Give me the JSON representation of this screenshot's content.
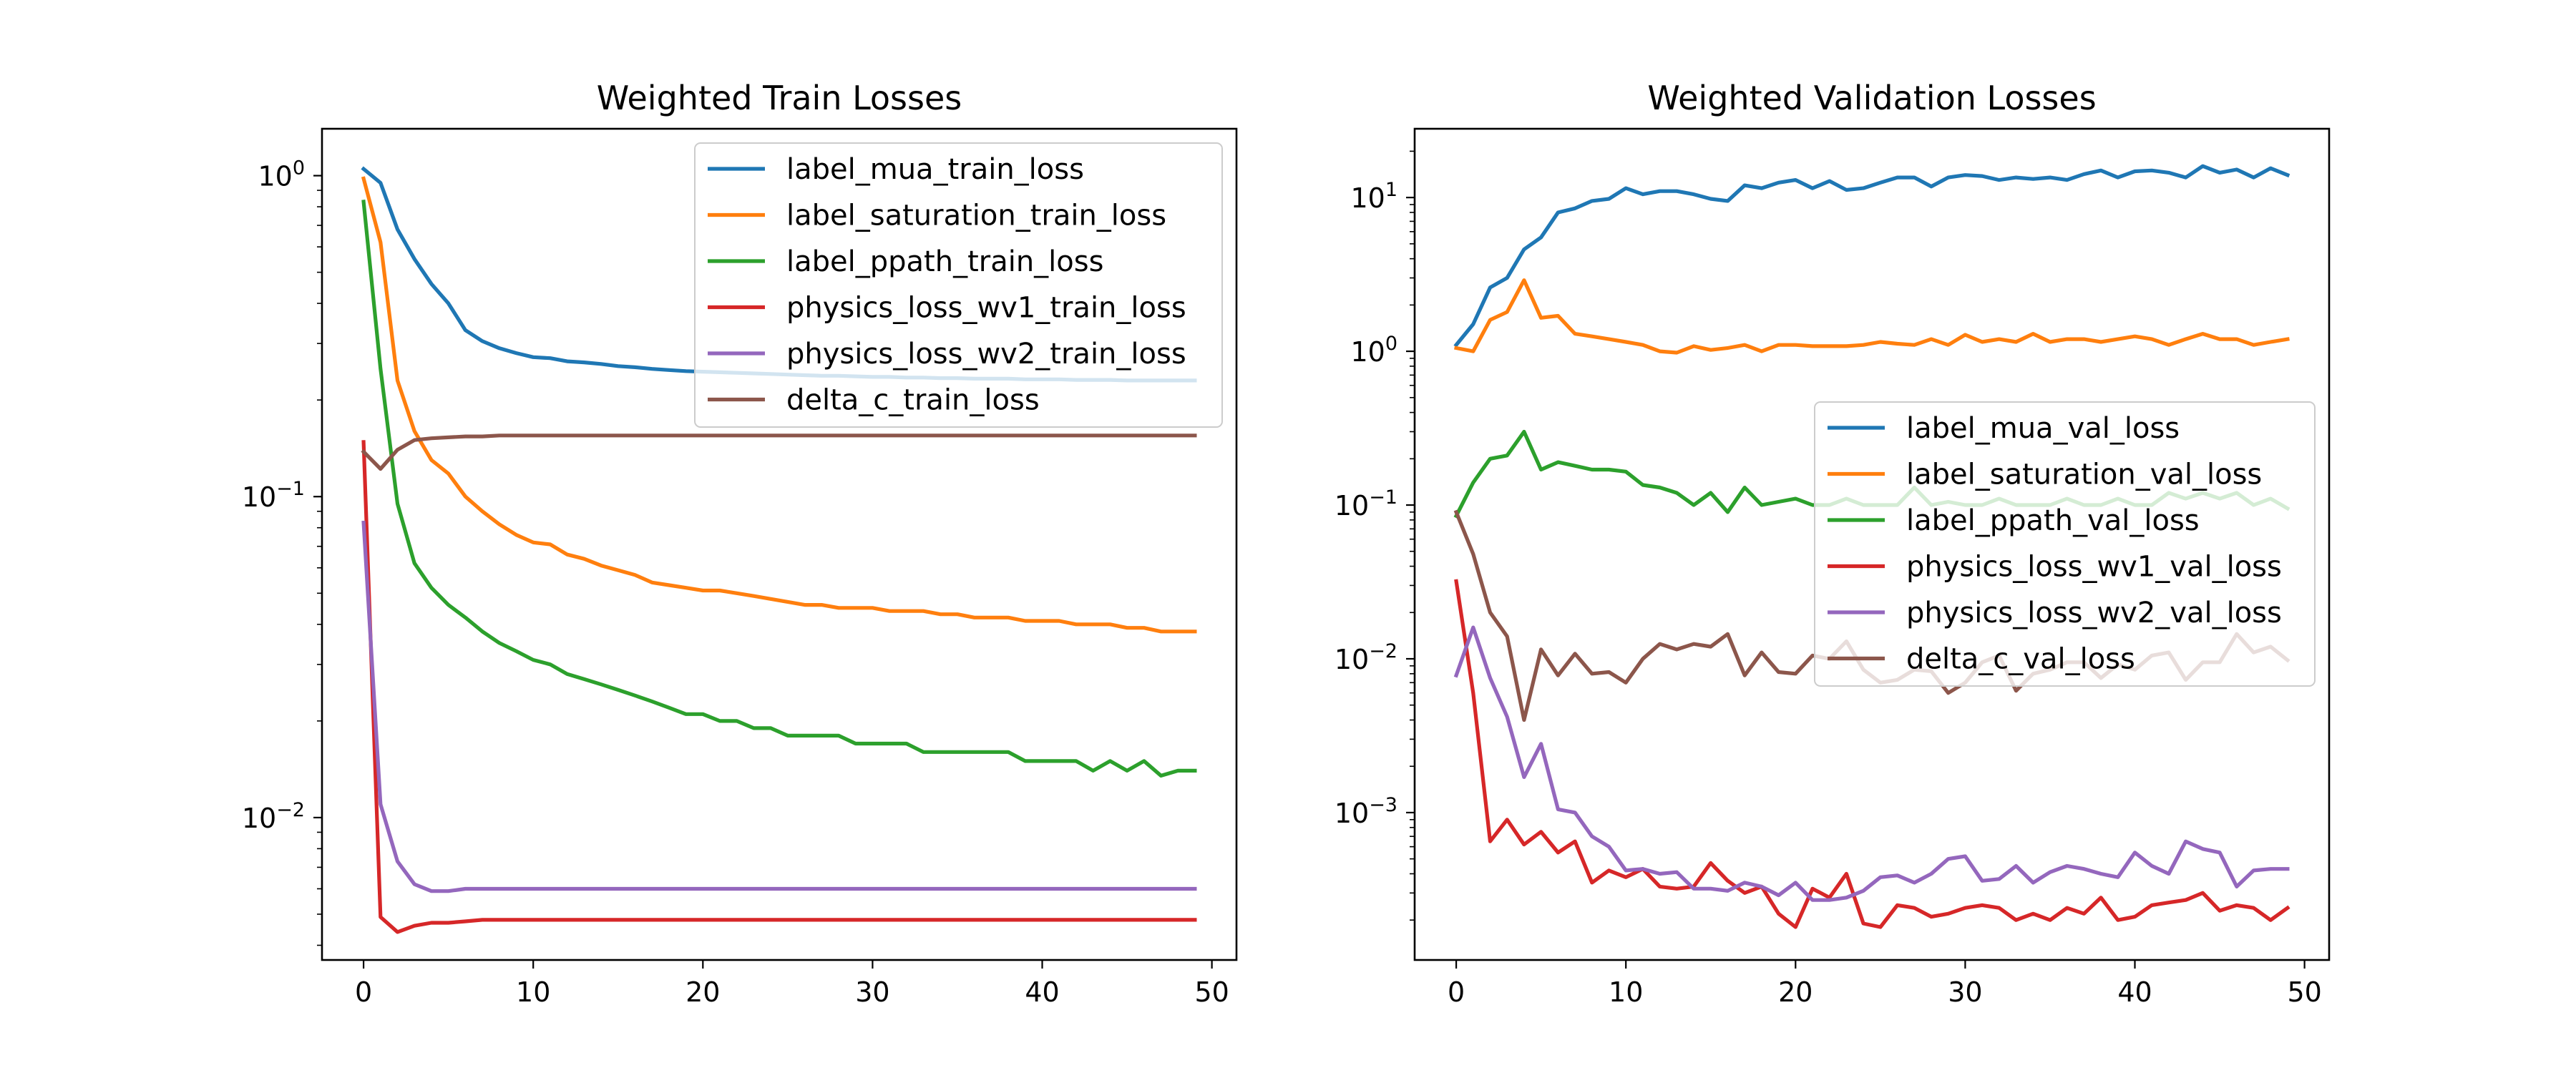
{
  "colors": {
    "blue": "#1f77b4",
    "orange": "#ff7f0e",
    "green": "#2ca02c",
    "red": "#d62728",
    "purple": "#9467bd",
    "brown": "#8c564b"
  },
  "chart_data": [
    {
      "type": "line",
      "title": "Weighted Train Losses",
      "xlabel": "",
      "ylabel": "",
      "xlim": [
        -2.45,
        51.45
      ],
      "ylim": [
        0.0036,
        1.4
      ],
      "yscale": "log",
      "xticks": [
        0,
        10,
        20,
        30,
        40,
        50
      ],
      "xtick_labels": [
        "0",
        "10",
        "20",
        "30",
        "40",
        "50"
      ],
      "yticks": [
        1,
        0.1,
        0.01
      ],
      "ytick_labels": [
        "10",
        "10",
        "10"
      ],
      "ytick_exponents": [
        "0",
        "−1",
        "−2"
      ],
      "grid": false,
      "legend": "top-right",
      "x": [
        0,
        1,
        2,
        3,
        4,
        5,
        6,
        7,
        8,
        9,
        10,
        11,
        12,
        13,
        14,
        15,
        16,
        17,
        18,
        19,
        20,
        21,
        22,
        23,
        24,
        25,
        26,
        27,
        28,
        29,
        30,
        31,
        32,
        33,
        34,
        35,
        36,
        37,
        38,
        39,
        40,
        41,
        42,
        43,
        44,
        45,
        46,
        47,
        48,
        49
      ],
      "series": [
        {
          "name": "label_mua_train_loss",
          "color": "blue",
          "values": [
            1.05,
            0.95,
            0.68,
            0.55,
            0.46,
            0.4,
            0.33,
            0.305,
            0.29,
            0.28,
            0.272,
            0.27,
            0.264,
            0.262,
            0.259,
            0.255,
            0.253,
            0.25,
            0.248,
            0.246,
            0.245,
            0.244,
            0.243,
            0.242,
            0.241,
            0.24,
            0.239,
            0.238,
            0.238,
            0.237,
            0.236,
            0.236,
            0.235,
            0.235,
            0.234,
            0.234,
            0.233,
            0.233,
            0.233,
            0.232,
            0.232,
            0.232,
            0.231,
            0.231,
            0.231,
            0.23,
            0.23,
            0.23,
            0.23,
            0.23
          ]
        },
        {
          "name": "label_saturation_train_loss",
          "color": "orange",
          "values": [
            0.98,
            0.62,
            0.23,
            0.16,
            0.13,
            0.118,
            0.1,
            0.09,
            0.082,
            0.076,
            0.072,
            0.071,
            0.066,
            0.064,
            0.061,
            0.059,
            0.057,
            0.054,
            0.053,
            0.052,
            0.051,
            0.051,
            0.05,
            0.049,
            0.048,
            0.047,
            0.046,
            0.046,
            0.045,
            0.045,
            0.045,
            0.044,
            0.044,
            0.044,
            0.043,
            0.043,
            0.042,
            0.042,
            0.042,
            0.041,
            0.041,
            0.041,
            0.04,
            0.04,
            0.04,
            0.039,
            0.039,
            0.038,
            0.038,
            0.038
          ]
        },
        {
          "name": "label_ppath_train_loss",
          "color": "green",
          "values": [
            0.83,
            0.25,
            0.095,
            0.062,
            0.052,
            0.046,
            0.042,
            0.038,
            0.035,
            0.033,
            0.031,
            0.03,
            0.028,
            0.027,
            0.026,
            0.025,
            0.024,
            0.023,
            0.022,
            0.021,
            0.021,
            0.02,
            0.02,
            0.019,
            0.019,
            0.018,
            0.018,
            0.018,
            0.018,
            0.017,
            0.017,
            0.017,
            0.017,
            0.016,
            0.016,
            0.016,
            0.016,
            0.016,
            0.016,
            0.015,
            0.015,
            0.015,
            0.015,
            0.014,
            0.015,
            0.014,
            0.015,
            0.0135,
            0.014,
            0.014
          ]
        },
        {
          "name": "physics_loss_wv1_train_loss",
          "color": "red",
          "values": [
            0.148,
            0.0049,
            0.0044,
            0.0046,
            0.0047,
            0.0047,
            0.00475,
            0.0048,
            0.0048,
            0.0048,
            0.0048,
            0.0048,
            0.0048,
            0.0048,
            0.0048,
            0.0048,
            0.0048,
            0.0048,
            0.0048,
            0.0048,
            0.0048,
            0.0048,
            0.0048,
            0.0048,
            0.0048,
            0.0048,
            0.0048,
            0.0048,
            0.0048,
            0.0048,
            0.0048,
            0.0048,
            0.0048,
            0.0048,
            0.0048,
            0.0048,
            0.0048,
            0.0048,
            0.0048,
            0.0048,
            0.0048,
            0.0048,
            0.0048,
            0.0048,
            0.0048,
            0.0048,
            0.0048,
            0.0048,
            0.0048,
            0.0048
          ]
        },
        {
          "name": "physics_loss_wv2_train_loss",
          "color": "purple",
          "values": [
            0.083,
            0.011,
            0.0073,
            0.0062,
            0.0059,
            0.0059,
            0.006,
            0.006,
            0.006,
            0.006,
            0.006,
            0.006,
            0.006,
            0.006,
            0.006,
            0.006,
            0.006,
            0.006,
            0.006,
            0.006,
            0.006,
            0.006,
            0.006,
            0.006,
            0.006,
            0.006,
            0.006,
            0.006,
            0.006,
            0.006,
            0.006,
            0.006,
            0.006,
            0.006,
            0.006,
            0.006,
            0.006,
            0.006,
            0.006,
            0.006,
            0.006,
            0.006,
            0.006,
            0.006,
            0.006,
            0.006,
            0.006,
            0.006,
            0.006,
            0.006
          ]
        },
        {
          "name": "delta_c_train_loss",
          "color": "brown",
          "values": [
            0.138,
            0.122,
            0.14,
            0.15,
            0.152,
            0.153,
            0.154,
            0.154,
            0.155,
            0.155,
            0.155,
            0.155,
            0.155,
            0.155,
            0.155,
            0.155,
            0.155,
            0.155,
            0.155,
            0.155,
            0.155,
            0.155,
            0.155,
            0.155,
            0.155,
            0.155,
            0.155,
            0.155,
            0.155,
            0.155,
            0.155,
            0.155,
            0.155,
            0.155,
            0.155,
            0.155,
            0.155,
            0.155,
            0.155,
            0.155,
            0.155,
            0.155,
            0.155,
            0.155,
            0.155,
            0.155,
            0.155,
            0.155,
            0.155,
            0.155
          ]
        }
      ]
    },
    {
      "type": "line",
      "title": "Weighted Validation Losses",
      "xlabel": "",
      "ylabel": "",
      "xlim": [
        -2.45,
        51.45
      ],
      "ylim": [
        0.00011,
        28
      ],
      "yscale": "log",
      "xticks": [
        0,
        10,
        20,
        30,
        40,
        50
      ],
      "xtick_labels": [
        "0",
        "10",
        "20",
        "30",
        "40",
        "50"
      ],
      "yticks": [
        10,
        1,
        0.1,
        0.01,
        0.001
      ],
      "ytick_labels": [
        "10",
        "10",
        "10",
        "10",
        "10"
      ],
      "ytick_exponents": [
        "1",
        "0",
        "−1",
        "−2",
        "−3"
      ],
      "grid": false,
      "legend": "center-right",
      "x": [
        0,
        1,
        2,
        3,
        4,
        5,
        6,
        7,
        8,
        9,
        10,
        11,
        12,
        13,
        14,
        15,
        16,
        17,
        18,
        19,
        20,
        21,
        22,
        23,
        24,
        25,
        26,
        27,
        28,
        29,
        30,
        31,
        32,
        33,
        34,
        35,
        36,
        37,
        38,
        39,
        40,
        41,
        42,
        43,
        44,
        45,
        46,
        47,
        48,
        49
      ],
      "series": [
        {
          "name": "label_mua_val_loss",
          "color": "blue",
          "values": [
            1.1,
            1.5,
            2.6,
            3.0,
            4.6,
            5.5,
            8.0,
            8.5,
            9.5,
            9.8,
            11.5,
            10.5,
            11.0,
            11.0,
            10.5,
            9.8,
            9.5,
            12.0,
            11.5,
            12.5,
            13.0,
            11.5,
            12.8,
            11.2,
            11.5,
            12.5,
            13.5,
            13.5,
            11.8,
            13.5,
            14.0,
            13.8,
            13.0,
            13.5,
            13.2,
            13.5,
            13.0,
            14.2,
            15.0,
            13.5,
            14.8,
            15.0,
            14.5,
            13.5,
            16.0,
            14.5,
            15.2,
            13.5,
            15.5,
            14.0
          ]
        },
        {
          "name": "label_saturation_val_loss",
          "color": "orange",
          "values": [
            1.05,
            1.0,
            1.6,
            1.8,
            2.9,
            1.65,
            1.7,
            1.3,
            1.25,
            1.2,
            1.15,
            1.1,
            1.0,
            0.98,
            1.08,
            1.02,
            1.05,
            1.1,
            1.0,
            1.1,
            1.1,
            1.08,
            1.08,
            1.08,
            1.1,
            1.15,
            1.12,
            1.1,
            1.2,
            1.1,
            1.28,
            1.15,
            1.2,
            1.15,
            1.3,
            1.15,
            1.2,
            1.2,
            1.15,
            1.2,
            1.25,
            1.2,
            1.1,
            1.2,
            1.3,
            1.2,
            1.2,
            1.1,
            1.15,
            1.2
          ]
        },
        {
          "name": "label_ppath_val_loss",
          "color": "green",
          "values": [
            0.085,
            0.14,
            0.2,
            0.21,
            0.3,
            0.17,
            0.19,
            0.18,
            0.17,
            0.17,
            0.165,
            0.135,
            0.13,
            0.12,
            0.1,
            0.12,
            0.09,
            0.13,
            0.1,
            0.105,
            0.11,
            0.1,
            0.1,
            0.11,
            0.1,
            0.1,
            0.1,
            0.13,
            0.1,
            0.105,
            0.1,
            0.1,
            0.11,
            0.1,
            0.1,
            0.1,
            0.11,
            0.1,
            0.1,
            0.11,
            0.1,
            0.1,
            0.12,
            0.11,
            0.12,
            0.11,
            0.12,
            0.1,
            0.11,
            0.095
          ]
        },
        {
          "name": "physics_loss_wv1_val_loss",
          "color": "red",
          "values": [
            0.032,
            0.006,
            0.00065,
            0.0009,
            0.00062,
            0.00075,
            0.00055,
            0.00065,
            0.00035,
            0.00042,
            0.00038,
            0.00043,
            0.00033,
            0.00032,
            0.00033,
            0.00047,
            0.00036,
            0.0003,
            0.00033,
            0.00022,
            0.00018,
            0.00032,
            0.00028,
            0.0004,
            0.00019,
            0.00018,
            0.00025,
            0.00024,
            0.00021,
            0.00022,
            0.00024,
            0.00025,
            0.00024,
            0.0002,
            0.00022,
            0.0002,
            0.00024,
            0.00022,
            0.00028,
            0.0002,
            0.00021,
            0.00025,
            0.00026,
            0.00027,
            0.0003,
            0.00023,
            0.00025,
            0.00024,
            0.0002,
            0.00024
          ]
        },
        {
          "name": "physics_loss_wv2_val_loss",
          "color": "purple",
          "values": [
            0.0078,
            0.016,
            0.0075,
            0.0042,
            0.0017,
            0.0028,
            0.00105,
            0.001,
            0.0007,
            0.0006,
            0.00042,
            0.00043,
            0.0004,
            0.00041,
            0.00032,
            0.00032,
            0.00031,
            0.00035,
            0.00033,
            0.00029,
            0.00035,
            0.00027,
            0.00027,
            0.00028,
            0.00031,
            0.00038,
            0.00039,
            0.00035,
            0.0004,
            0.0005,
            0.00052,
            0.00036,
            0.00037,
            0.00045,
            0.00035,
            0.00041,
            0.00045,
            0.00043,
            0.0004,
            0.00038,
            0.00055,
            0.00045,
            0.0004,
            0.00065,
            0.00058,
            0.00055,
            0.00033,
            0.00042,
            0.00043,
            0.00043
          ]
        },
        {
          "name": "delta_c_val_loss",
          "color": "brown",
          "values": [
            0.09,
            0.048,
            0.02,
            0.014,
            0.004,
            0.0115,
            0.0078,
            0.0108,
            0.008,
            0.0082,
            0.007,
            0.01,
            0.0125,
            0.0115,
            0.0125,
            0.012,
            0.0145,
            0.0078,
            0.011,
            0.0082,
            0.008,
            0.0105,
            0.01,
            0.013,
            0.0085,
            0.007,
            0.0073,
            0.0085,
            0.0083,
            0.006,
            0.007,
            0.0095,
            0.0105,
            0.0062,
            0.008,
            0.0085,
            0.0095,
            0.0095,
            0.0075,
            0.0092,
            0.0085,
            0.0105,
            0.011,
            0.0073,
            0.0095,
            0.0095,
            0.0145,
            0.011,
            0.012,
            0.0098
          ]
        }
      ]
    }
  ]
}
